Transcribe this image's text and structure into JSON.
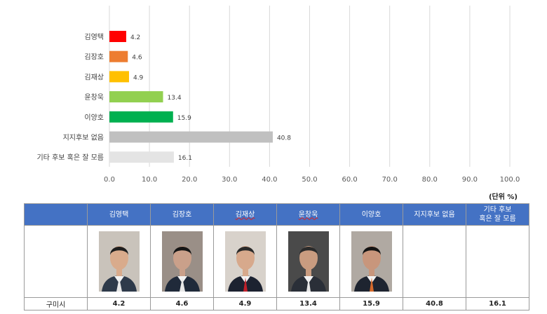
{
  "chart_data": {
    "type": "bar",
    "orientation": "horizontal",
    "categories": [
      "김영택",
      "김장호",
      "김재상",
      "윤창욱",
      "이양호",
      "지지후보 없음",
      "기타 후보 혹은 잘 모름"
    ],
    "values": [
      4.2,
      4.6,
      4.9,
      13.4,
      15.9,
      40.8,
      16.1
    ],
    "value_labels": [
      "4.2",
      "4.6",
      "4.9",
      "13.4",
      "15.9",
      "40.8",
      "16.1"
    ],
    "colors": [
      "#ff0000",
      "#ed7d31",
      "#ffc000",
      "#92d050",
      "#00b050",
      "#c0c0c0",
      "#e4e4e4"
    ],
    "xlim": [
      0,
      100
    ],
    "ticks": [
      "0.0",
      "10.0",
      "20.0",
      "30.0",
      "40.0",
      "50.0",
      "60.0",
      "70.0",
      "80.0",
      "90.0",
      "100.0"
    ],
    "grid": true,
    "unit": "(단위 %)"
  },
  "table": {
    "headers": [
      "",
      "김영택",
      "김장호",
      "김재상",
      "윤창욱",
      "이양호",
      "지지후보 없음",
      "기타 후보\n혹은 잘 모름"
    ],
    "row_label": "구미시",
    "values": [
      "4.2",
      "4.6",
      "4.9",
      "13.4",
      "15.9",
      "40.8",
      "16.1"
    ],
    "photos": [
      "portrait-photo",
      "portrait-photo",
      "portrait-photo",
      "portrait-photo",
      "portrait-photo",
      "",
      ""
    ]
  }
}
